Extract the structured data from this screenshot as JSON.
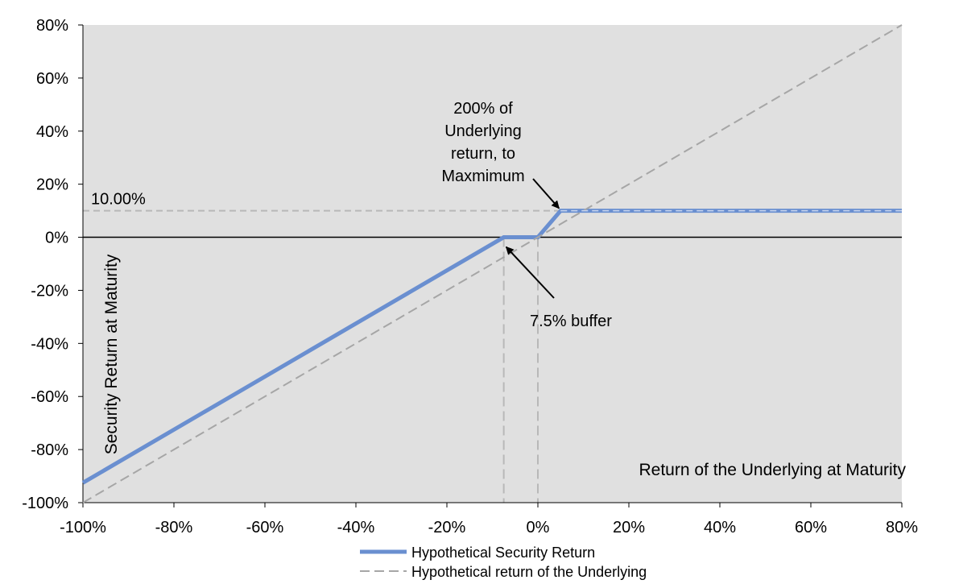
{
  "chart_data": {
    "type": "line",
    "title": "",
    "xlabel": "Return of the Underlying at Maturity",
    "ylabel": "Security Return at Maturity",
    "xlim": [
      -100,
      80
    ],
    "ylim": [
      -100,
      80
    ],
    "x_ticks": [
      -100,
      -80,
      -60,
      -40,
      -20,
      0,
      20,
      40,
      60,
      80
    ],
    "y_ticks": [
      -100,
      -80,
      -60,
      -40,
      -20,
      0,
      20,
      40,
      60,
      80
    ],
    "x_tick_labels": [
      "-100%",
      "-80%",
      "-60%",
      "-40%",
      "-20%",
      "0%",
      "20%",
      "40%",
      "60%",
      "80%"
    ],
    "y_tick_labels": [
      "-100%",
      "-80%",
      "-60%",
      "-40%",
      "-20%",
      "0%",
      "20%",
      "40%",
      "60%",
      "80%"
    ],
    "grid": false,
    "legend_position": "bottom",
    "series": [
      {
        "name": "Hypothetical Security Return",
        "style": "solid",
        "color": "#6a8fd0",
        "x": [
          -100,
          -7.5,
          0,
          5,
          80
        ],
        "y": [
          -92.5,
          0,
          0,
          10,
          10
        ]
      },
      {
        "name": "Hypothetical return of the Underlying",
        "style": "dashed",
        "color": "#a6a6a6",
        "x": [
          -100,
          80
        ],
        "y": [
          -100,
          80
        ]
      }
    ],
    "reference_lines": [
      {
        "orientation": "horizontal",
        "y": 10,
        "label": "10.00%"
      },
      {
        "orientation": "vertical",
        "x": -7.5
      },
      {
        "orientation": "vertical",
        "x": 0
      }
    ],
    "annotations": [
      {
        "lines": [
          "200% of",
          "Underlying",
          "return, to",
          "Maxmimum"
        ],
        "arrow_to": {
          "x": 5,
          "y": 10
        }
      },
      {
        "lines": [
          "7.5% buffer"
        ],
        "arrow_to": {
          "x": -7.5,
          "y": 0
        }
      }
    ],
    "plot_background": "#e0e0e0"
  }
}
